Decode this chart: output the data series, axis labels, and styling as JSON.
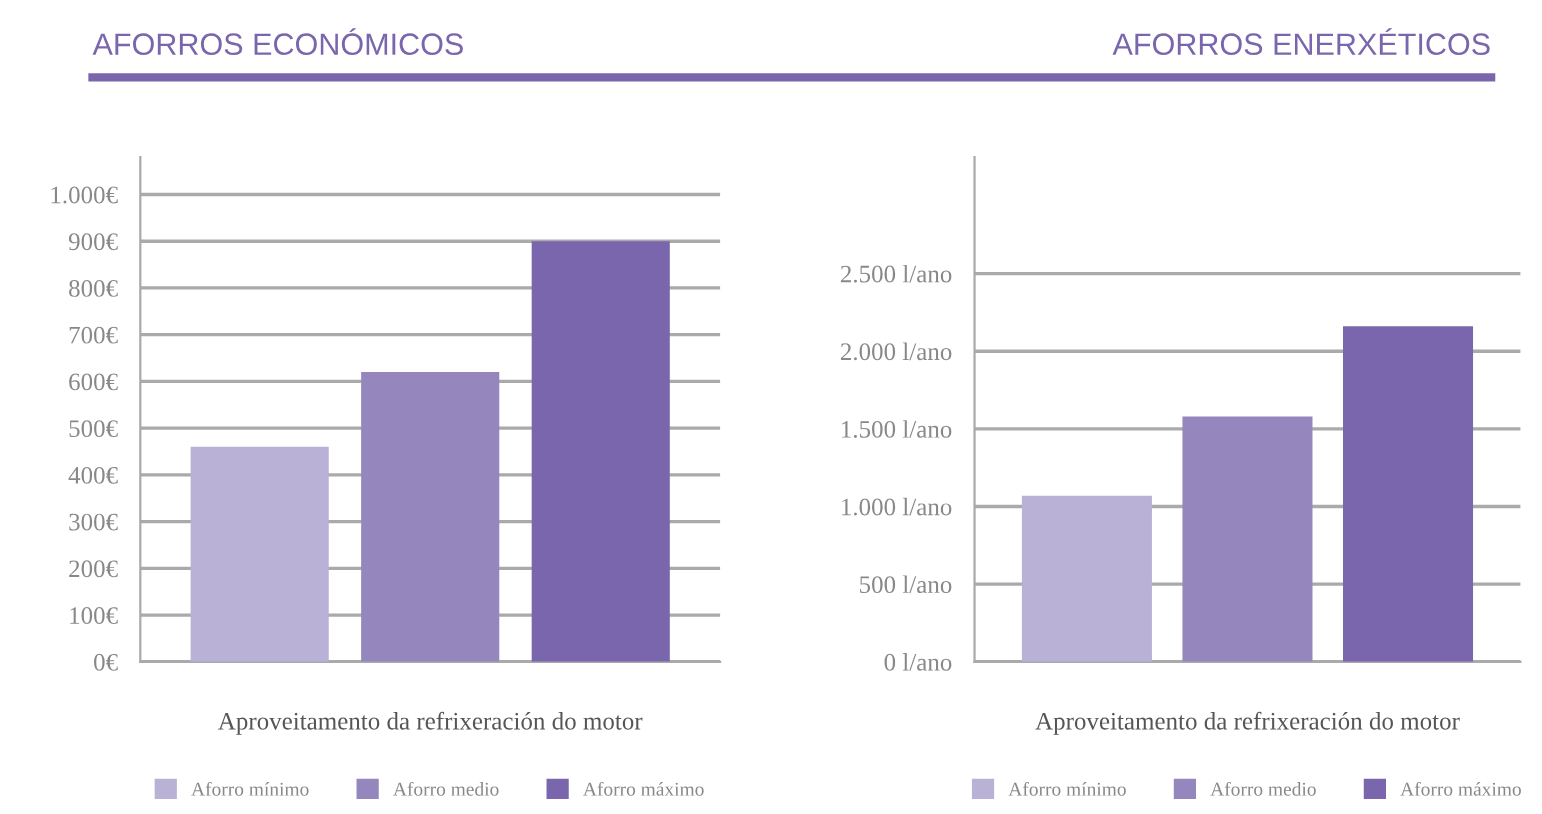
{
  "chart_data": [
    {
      "type": "bar",
      "title": "AFORROS ECONÓMICOS",
      "xlabel": "Aproveitamento da refrixeración do motor",
      "categories": [
        null,
        null,
        null
      ],
      "ylim": [
        0,
        1080
      ],
      "yticks": [
        {
          "value": 0,
          "label": "0€"
        },
        {
          "value": 100,
          "label": "100€"
        },
        {
          "value": 200,
          "label": "200€"
        },
        {
          "value": 300,
          "label": "300€"
        },
        {
          "value": 400,
          "label": "400€"
        },
        {
          "value": 500,
          "label": "500€"
        },
        {
          "value": 600,
          "label": "600€"
        },
        {
          "value": 700,
          "label": "700€"
        },
        {
          "value": 800,
          "label": "800€"
        },
        {
          "value": 900,
          "label": "900€"
        },
        {
          "value": 1000,
          "label": "1.000€"
        }
      ],
      "series": [
        {
          "name": "Aforro mínimo",
          "color": "#bab1d6",
          "values": [
            460,
            null,
            null
          ]
        },
        {
          "name": "Aforro medio",
          "color": "#9586bd",
          "values": [
            null,
            620,
            null
          ]
        },
        {
          "name": "Aforro máximo",
          "color": "#7a66ac",
          "values": [
            null,
            null,
            900
          ]
        }
      ],
      "grid": "y",
      "legend": "bottom"
    },
    {
      "type": "bar",
      "title": "AFORROS ENERXÉTICOS",
      "xlabel": "Aproveitamento da refrixeración do motor",
      "categories": [
        null,
        null,
        null
      ],
      "ylim": [
        0,
        3250
      ],
      "yticks": [
        {
          "value": 0,
          "label": "0 l/ano"
        },
        {
          "value": 500,
          "label": "500 l/ano"
        },
        {
          "value": 1000,
          "label": "1.000 l/ano"
        },
        {
          "value": 1500,
          "label": "1.500 l/ano"
        },
        {
          "value": 2000,
          "label": "2.000 l/ano"
        },
        {
          "value": 2500,
          "label": "2.500 l/ano"
        }
      ],
      "series": [
        {
          "name": "Aforro mínimo",
          "color": "#bab1d6",
          "values": [
            1070,
            null,
            null
          ]
        },
        {
          "name": "Aforro medio",
          "color": "#9586bd",
          "values": [
            null,
            1580,
            null
          ]
        },
        {
          "name": "Aforro máximo",
          "color": "#7a66ac",
          "values": [
            null,
            null,
            2160
          ]
        }
      ],
      "grid": "y",
      "legend": "bottom"
    }
  ]
}
